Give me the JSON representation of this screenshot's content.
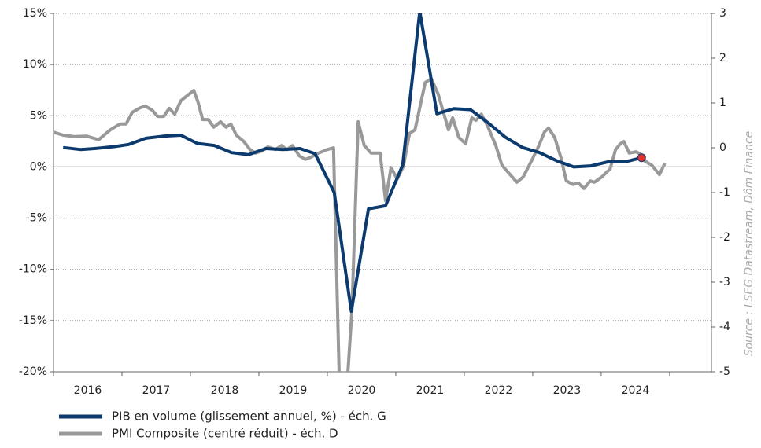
{
  "chart_data": {
    "type": "line",
    "source": "Source : LSEG Datastream, Dôm Finance",
    "xlim": [
      2016,
      2025.61
    ],
    "xticks": [
      {
        "value": 2016.5,
        "label": "2016"
      },
      {
        "value": 2017.5,
        "label": "2017"
      },
      {
        "value": 2018.5,
        "label": "2018"
      },
      {
        "value": 2019.5,
        "label": "2019"
      },
      {
        "value": 2020.5,
        "label": "2020"
      },
      {
        "value": 2021.5,
        "label": "2021"
      },
      {
        "value": 2022.5,
        "label": "2022"
      },
      {
        "value": 2023.5,
        "label": "2023"
      },
      {
        "value": 2024.5,
        "label": "2024"
      }
    ],
    "xtick_marks": [
      2016,
      2017,
      2018,
      2019,
      2020,
      2021,
      2022,
      2023,
      2024,
      2025
    ],
    "ylim": [
      -20,
      15
    ],
    "yticks": [
      {
        "value": 15,
        "label": "15%"
      },
      {
        "value": 10,
        "label": "10%"
      },
      {
        "value": 5,
        "label": "5%"
      },
      {
        "value": 0,
        "label": "0%"
      },
      {
        "value": -5,
        "label": "-5%"
      },
      {
        "value": -10,
        "label": "-10%"
      },
      {
        "value": -15,
        "label": "-15%"
      },
      {
        "value": -20,
        "label": "-20%"
      }
    ],
    "y2lim": [
      -5,
      3
    ],
    "y2ticks": [
      3,
      2,
      1,
      0,
      -1,
      -2,
      -3,
      -4,
      -5
    ],
    "grid": true,
    "zero_line": 0,
    "highlight_last": "#e03030",
    "series": [
      {
        "name": "PIB en volume (glissement annuel, %) - éch. G",
        "color": "#0b3a6e",
        "axis": "y",
        "x": [
          2016.14,
          2016.4,
          2016.6,
          2016.9,
          2017.1,
          2017.35,
          2017.6,
          2017.86,
          2018.1,
          2018.35,
          2018.6,
          2018.85,
          2019.1,
          2019.35,
          2019.6,
          2019.82,
          2020.1,
          2020.35,
          2020.6,
          2020.85,
          2021.1,
          2021.35,
          2021.6,
          2021.85,
          2022.09,
          2022.35,
          2022.6,
          2022.85,
          2023.1,
          2023.35,
          2023.6,
          2023.85,
          2024.1,
          2024.35,
          2024.59
        ],
        "values": [
          1.9,
          1.7,
          1.8,
          2.0,
          2.2,
          2.8,
          3.0,
          3.1,
          2.3,
          2.1,
          1.4,
          1.2,
          1.8,
          1.7,
          1.8,
          1.3,
          -2.5,
          -14.1,
          -4.1,
          -3.8,
          0.2,
          15.2,
          5.2,
          5.7,
          5.6,
          4.3,
          2.9,
          1.9,
          1.4,
          0.6,
          0.0,
          0.1,
          0.5,
          0.5,
          0.9
        ]
      },
      {
        "name": "PMI Composite (centré réduit) - éch. D",
        "color": "#999999",
        "axis": "y2",
        "x": [
          2016.0,
          2016.14,
          2016.31,
          2016.48,
          2016.66,
          2016.83,
          2016.97,
          2017.06,
          2017.15,
          2017.26,
          2017.34,
          2017.44,
          2017.52,
          2017.61,
          2017.69,
          2017.77,
          2017.86,
          2017.95,
          2018.05,
          2018.11,
          2018.18,
          2018.26,
          2018.34,
          2018.44,
          2018.52,
          2018.59,
          2018.67,
          2018.78,
          2018.87,
          2018.95,
          2019.05,
          2019.13,
          2019.24,
          2019.33,
          2019.41,
          2019.49,
          2019.59,
          2019.68,
          2019.76,
          2019.87,
          2020.0,
          2020.09,
          2020.18,
          2020.28,
          2020.36,
          2020.45,
          2020.54,
          2020.64,
          2020.77,
          2020.85,
          2020.93,
          2021.02,
          2021.11,
          2021.2,
          2021.28,
          2021.43,
          2021.52,
          2021.62,
          2021.77,
          2021.83,
          2021.92,
          2022.02,
          2022.11,
          2022.17,
          2022.25,
          2022.34,
          2022.46,
          2022.55,
          2022.67,
          2022.77,
          2022.86,
          2022.98,
          2023.09,
          2023.17,
          2023.23,
          2023.32,
          2023.41,
          2023.49,
          2023.59,
          2023.67,
          2023.75,
          2023.84,
          2023.9,
          2024.01,
          2024.13,
          2024.21,
          2024.28,
          2024.33,
          2024.41,
          2024.51,
          2024.59,
          2024.64,
          2024.74,
          2024.85,
          2024.93
        ],
        "values": [
          0.35,
          0.28,
          0.25,
          0.26,
          0.18,
          0.4,
          0.53,
          0.53,
          0.79,
          0.89,
          0.93,
          0.84,
          0.7,
          0.7,
          0.88,
          0.75,
          1.05,
          1.16,
          1.28,
          1.02,
          0.63,
          0.63,
          0.46,
          0.58,
          0.46,
          0.53,
          0.28,
          0.14,
          -0.04,
          -0.12,
          -0.07,
          0.02,
          -0.04,
          0.05,
          -0.04,
          0.05,
          -0.18,
          -0.26,
          -0.21,
          -0.12,
          -0.04,
          0.0,
          -5.5,
          -5.5,
          -3.6,
          0.58,
          0.05,
          -0.12,
          -0.12,
          -1.18,
          -0.44,
          -0.7,
          -0.42,
          0.32,
          0.4,
          1.46,
          1.54,
          1.19,
          0.4,
          0.67,
          0.23,
          0.09,
          0.67,
          0.61,
          0.75,
          0.49,
          0.05,
          -0.39,
          -0.6,
          -0.77,
          -0.65,
          -0.3,
          0.05,
          0.35,
          0.44,
          0.23,
          -0.21,
          -0.74,
          -0.82,
          -0.79,
          -0.91,
          -0.74,
          -0.77,
          -0.65,
          -0.47,
          -0.04,
          0.09,
          0.14,
          -0.12,
          -0.09,
          -0.16,
          -0.3,
          -0.39,
          -0.6,
          -0.35
        ]
      }
    ]
  }
}
